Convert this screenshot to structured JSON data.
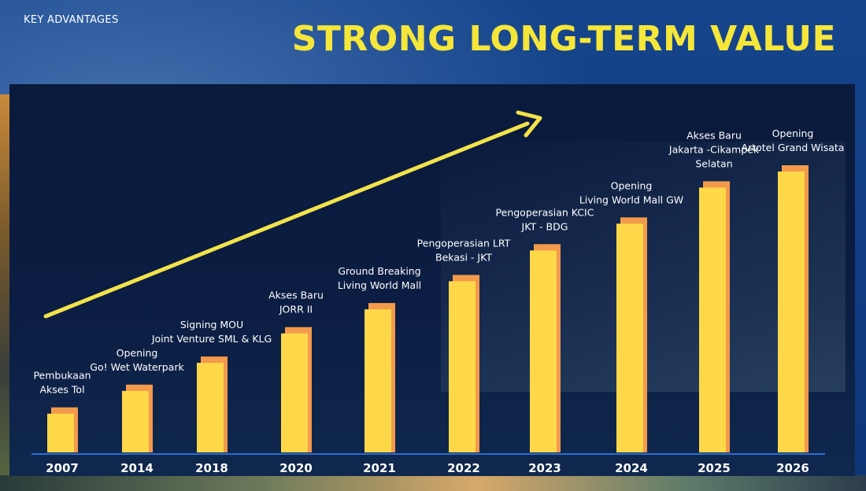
{
  "header": {
    "kicker": "KEY ADVANTAGES",
    "title": "STRONG LONG-TERM VALUE"
  },
  "colors": {
    "title": "#f5e63a",
    "bar_front": "#ffd84a",
    "bar_back": "#f39a4c",
    "arrow": "#f3e24a",
    "panel": "#0b1d42",
    "background": "#123f86",
    "axis_line": "#2a6fd6"
  },
  "chart_data": {
    "type": "bar",
    "categories": [
      "2007",
      "2014",
      "2018",
      "2020",
      "2021",
      "2022",
      "2023",
      "2024",
      "2025",
      "2026"
    ],
    "values": [
      1.45,
      2.3,
      3.35,
      4.45,
      5.35,
      6.4,
      7.55,
      8.55,
      9.9,
      10.5
    ],
    "ylim": [
      0,
      12
    ],
    "grid": false,
    "legend": "none",
    "annotations": [
      [
        "Pembukaan",
        "Akses Tol"
      ],
      [
        "Opening",
        "Go! Wet Waterpark"
      ],
      [
        "Signing MOU",
        "Joint Venture SML & KLG"
      ],
      [
        "Akses Baru",
        "JORR II"
      ],
      [
        "Ground Breaking",
        "Living World Mall"
      ],
      [
        "Pengoperasian LRT",
        "Bekasi - JKT"
      ],
      [
        "Pengoperasian KCIC",
        "JKT - BDG"
      ],
      [
        "Opening",
        "Living World Mall GW"
      ],
      [
        "Akses Baru",
        "Jakarta -Cikampek",
        "Selatan"
      ],
      [
        "Opening",
        "Artotel Grand Wisata"
      ]
    ],
    "trend_arrow": true
  }
}
